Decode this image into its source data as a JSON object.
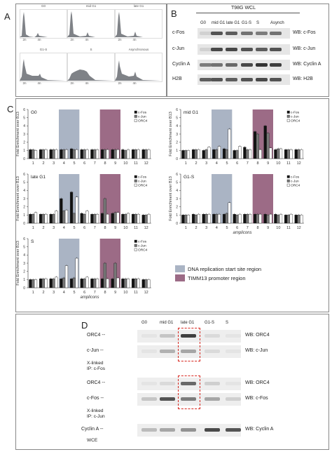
{
  "panel_labels": [
    "A",
    "B",
    "C",
    "D"
  ],
  "panelA": {
    "histograms": [
      {
        "label": "G0",
        "x_ticks": [
          "2n",
          "4n"
        ]
      },
      {
        "label": "mid G1",
        "x_ticks": [
          "2n",
          "4n"
        ]
      },
      {
        "label": "late G1",
        "x_ticks": [
          "2n",
          "4n"
        ]
      },
      {
        "label": "G1-S",
        "x_ticks": [
          "2n",
          "4n"
        ]
      },
      {
        "label": "S",
        "x_ticks": [
          "2n",
          "4n"
        ]
      },
      {
        "label": "Asynchronous",
        "x_ticks": [
          "2n",
          "4n"
        ]
      }
    ]
  },
  "panelB": {
    "header": "T98G WCL",
    "lanes": [
      "G0",
      "mid G1",
      "late G1",
      "G1-S",
      "S",
      "Asynch"
    ],
    "rows": [
      {
        "left": "c-Fos",
        "right": "WB: c-Fos"
      },
      {
        "left": "c-Jun",
        "right": "WB: c-Jun"
      },
      {
        "left": "Cyclin A",
        "right": "WB: Cyclin A"
      },
      {
        "left": "H2B",
        "right": "WB: H2B"
      }
    ]
  },
  "panelC": {
    "ylabel": "Fold Enrichment over B13",
    "xlabel": "amplicons",
    "legend": [
      "c-Fos",
      "c-Jun",
      "ORC4"
    ],
    "region_legend": [
      {
        "label": "DNA replication start site region",
        "color": "#aab4c4"
      },
      {
        "label": "TIMM13 promoter region",
        "color": "#9c6b86"
      }
    ],
    "colors": {
      "fos": "#111111",
      "jun": "#777777",
      "orc4": "#ffffff",
      "rep": "#aab4c4",
      "timm": "#9c6b86"
    }
  },
  "chart_data": [
    {
      "type": "bar",
      "title": "G0",
      "categories": [
        "1",
        "2",
        "3",
        "4",
        "5",
        "6",
        "7",
        "8",
        "9",
        "10",
        "11",
        "12"
      ],
      "ylim": [
        0,
        6
      ],
      "y_ticks": [
        "0",
        "1",
        "2",
        "3",
        "4",
        "5",
        "6"
      ],
      "series": [
        {
          "name": "c-Fos",
          "values": [
            1.1,
            1.1,
            1.1,
            1.1,
            1.2,
            1.1,
            1.1,
            1.1,
            1.1,
            1.1,
            1.1,
            1.1
          ]
        },
        {
          "name": "c-Jun",
          "values": [
            1.1,
            1.1,
            1.1,
            1.1,
            1.1,
            1.1,
            1.1,
            1.1,
            1.1,
            1.0,
            1.1,
            1.1
          ]
        },
        {
          "name": "ORC4",
          "values": [
            1.0,
            1.1,
            1.1,
            1.1,
            1.1,
            1.1,
            1.1,
            1.1,
            1.1,
            1.1,
            1.1,
            1.1
          ]
        }
      ]
    },
    {
      "type": "bar",
      "title": "mid G1",
      "categories": [
        "1",
        "2",
        "3",
        "4",
        "5",
        "6",
        "7",
        "8",
        "9",
        "10",
        "11",
        "12"
      ],
      "ylim": [
        0,
        6
      ],
      "y_ticks": [
        "0",
        "1",
        "2",
        "3",
        "4",
        "5",
        "6"
      ],
      "series": [
        {
          "name": "c-Fos",
          "values": [
            1.0,
            1.1,
            1.0,
            1.1,
            1.2,
            1.0,
            1.4,
            3.3,
            4.0,
            1.1,
            1.1,
            1.1
          ]
        },
        {
          "name": "c-Jun",
          "values": [
            1.0,
            1.1,
            1.1,
            1.1,
            1.1,
            1.0,
            1.1,
            3.0,
            3.1,
            1.2,
            1.1,
            1.1
          ]
        },
        {
          "name": "ORC4",
          "values": [
            1.0,
            1.1,
            1.4,
            1.5,
            3.6,
            1.5,
            1.1,
            1.1,
            1.3,
            1.2,
            1.1,
            1.1
          ]
        }
      ]
    },
    {
      "type": "bar",
      "title": "late G1",
      "categories": [
        "1",
        "2",
        "3",
        "4",
        "5",
        "6",
        "7",
        "8",
        "9",
        "10",
        "11",
        "12"
      ],
      "ylim": [
        0,
        6
      ],
      "y_ticks": [
        "0",
        "1",
        "2",
        "3",
        "4",
        "5",
        "6"
      ],
      "series": [
        {
          "name": "c-Fos",
          "values": [
            1.1,
            1.1,
            1.1,
            3.0,
            3.8,
            1.2,
            1.1,
            1.2,
            1.2,
            1.1,
            1.1,
            1.0
          ]
        },
        {
          "name": "c-Jun",
          "values": [
            1.1,
            1.1,
            1.1,
            1.5,
            1.2,
            1.1,
            1.1,
            3.0,
            1.3,
            1.1,
            1.1,
            1.0
          ]
        },
        {
          "name": "ORC4",
          "values": [
            1.3,
            1.1,
            1.5,
            1.6,
            3.2,
            1.5,
            1.1,
            1.1,
            1.3,
            1.2,
            1.1,
            1.1
          ]
        }
      ]
    },
    {
      "type": "bar",
      "title": "G1-S",
      "categories": [
        "1",
        "2",
        "3",
        "4",
        "5",
        "6",
        "7",
        "8",
        "9",
        "10",
        "11",
        "12"
      ],
      "ylim": [
        0,
        6
      ],
      "y_ticks": [
        "0",
        "1",
        "2",
        "3",
        "4",
        "5",
        "6"
      ],
      "series": [
        {
          "name": "c-Fos",
          "values": [
            1.0,
            1.1,
            1.1,
            1.1,
            1.1,
            1.1,
            1.1,
            1.1,
            1.1,
            1.1,
            1.0,
            1.0
          ]
        },
        {
          "name": "c-Jun",
          "values": [
            1.0,
            1.0,
            1.1,
            1.1,
            1.2,
            1.0,
            1.1,
            1.1,
            1.0,
            1.0,
            1.0,
            1.0
          ]
        },
        {
          "name": "ORC4",
          "values": [
            1.0,
            1.1,
            1.1,
            1.1,
            2.5,
            1.1,
            1.1,
            1.1,
            1.1,
            1.1,
            1.1,
            1.0
          ]
        }
      ]
    },
    {
      "type": "bar",
      "title": "S",
      "categories": [
        "1",
        "2",
        "3",
        "4",
        "5",
        "6",
        "7",
        "8",
        "9",
        "10",
        "11",
        "12"
      ],
      "ylim": [
        0,
        6
      ],
      "y_ticks": [
        "0",
        "1",
        "2",
        "3",
        "4",
        "5",
        "6"
      ],
      "series": [
        {
          "name": "c-Fos",
          "values": [
            1.0,
            1.1,
            1.1,
            1.1,
            1.1,
            1.1,
            1.1,
            1.1,
            1.1,
            1.1,
            1.1,
            1.0
          ]
        },
        {
          "name": "c-Jun",
          "values": [
            1.0,
            1.1,
            1.1,
            1.2,
            1.2,
            1.1,
            1.1,
            3.0,
            3.0,
            1.1,
            1.1,
            1.0
          ]
        },
        {
          "name": "ORC4",
          "values": [
            1.0,
            1.1,
            1.3,
            2.7,
            3.6,
            1.3,
            1.1,
            1.1,
            1.2,
            1.1,
            1.1,
            1.0
          ]
        }
      ]
    }
  ],
  "panelD": {
    "lanes": [
      "G0",
      "mid G1",
      "late G1",
      "G1-S",
      "S"
    ],
    "blocks": [
      {
        "rows": [
          {
            "left": "ORC4 --",
            "right": "WB: ORC4"
          },
          {
            "left": "c-Jun --",
            "right": "WB: c-Jun"
          }
        ],
        "ip": [
          "X-linked",
          "IP: c-Fos"
        ]
      },
      {
        "rows": [
          {
            "left": "ORC4 --",
            "right": "WB: ORC4"
          },
          {
            "left": "c-Fos --",
            "right": "WB: c-Fos"
          }
        ],
        "ip": [
          "X-linked",
          "IP: c-Jun"
        ]
      },
      {
        "rows": [
          {
            "left": "Cyclin A --",
            "right": "WB: Cyclin A"
          }
        ],
        "ip": [
          "WCE"
        ]
      }
    ]
  }
}
